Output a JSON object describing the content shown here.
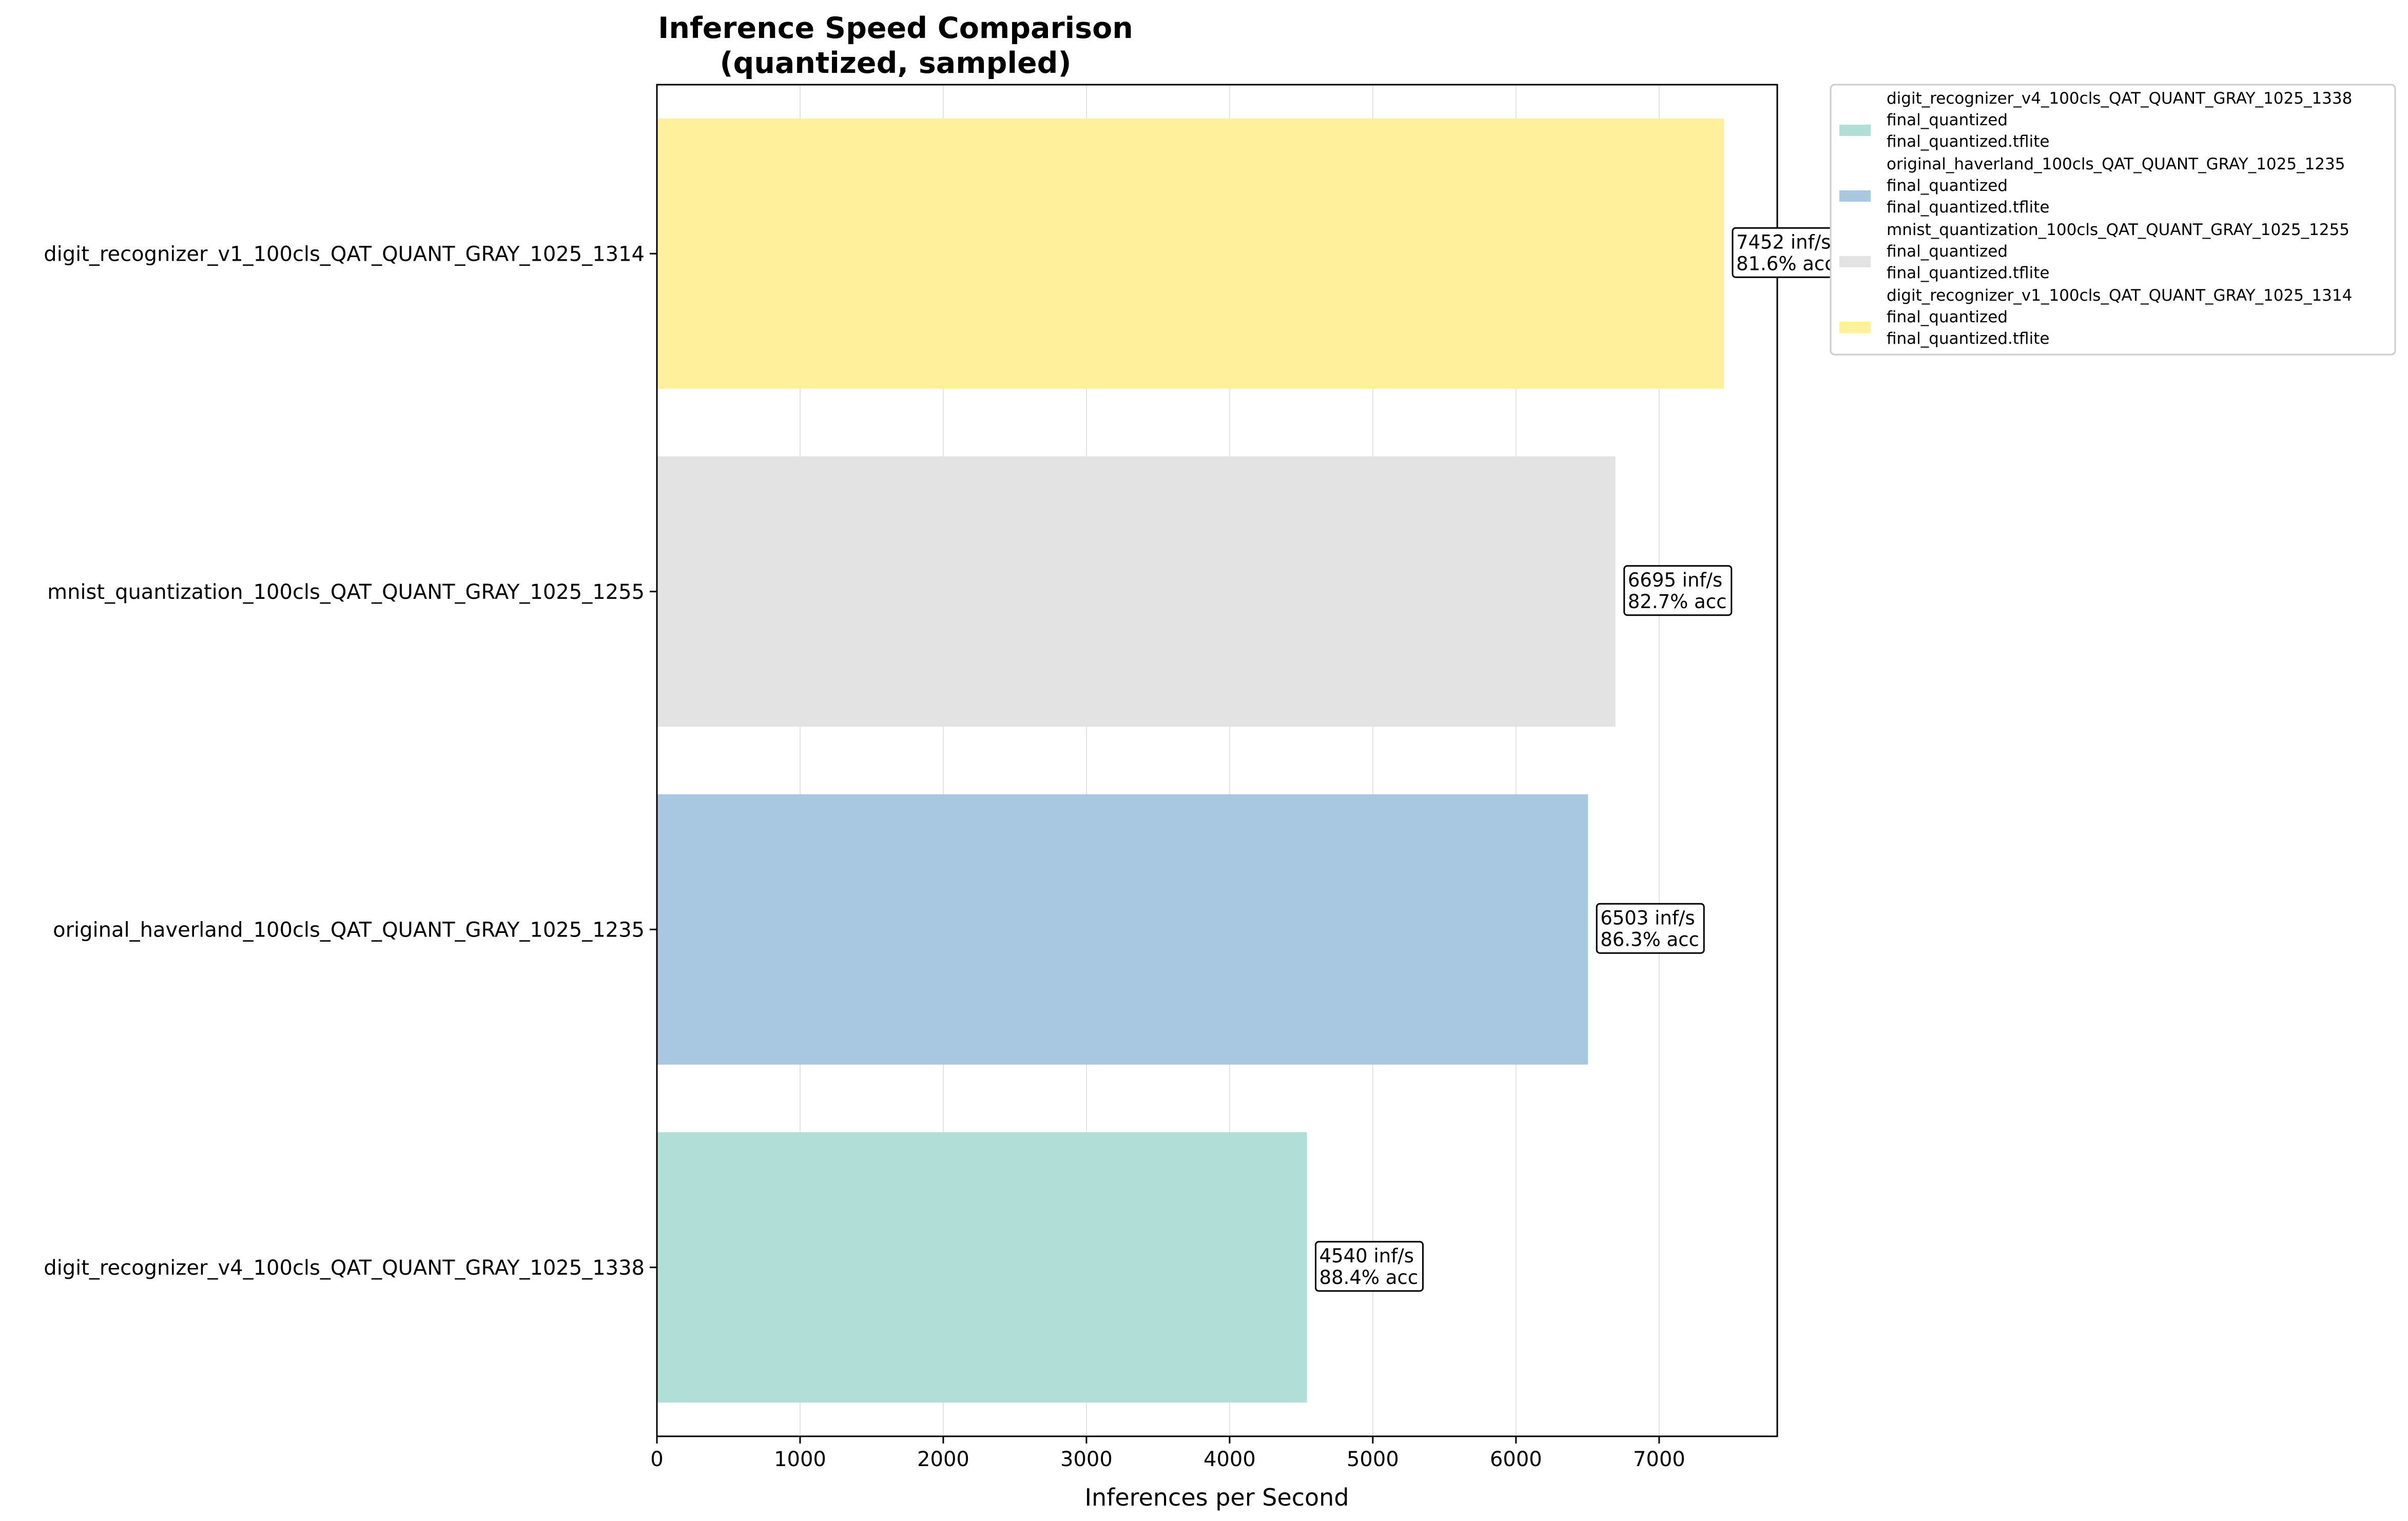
{
  "chart_data": {
    "type": "bar",
    "orientation": "horizontal",
    "title_lines": [
      "Inference Speed Comparison",
      "(quantized, sampled)"
    ],
    "xlabel": "Inferences per Second",
    "ylabel": "",
    "xlim": [
      0,
      7825
    ],
    "xticks": [
      0,
      1000,
      2000,
      3000,
      4000,
      5000,
      6000,
      7000
    ],
    "grid": "vertical",
    "legend_position": "outside-right-top",
    "categories": [
      "digit_recognizer_v4_100cls_QAT_QUANT_GRAY_1025_1338",
      "original_haverland_100cls_QAT_QUANT_GRAY_1025_1235",
      "mnist_quantization_100cls_QAT_QUANT_GRAY_1025_1255",
      "digit_recognizer_v1_100cls_QAT_QUANT_GRAY_1025_1314"
    ],
    "values": [
      4540,
      6503,
      6695,
      7452
    ],
    "data_labels": [
      [
        "4540 inf/s",
        "88.4% acc"
      ],
      [
        "6503 inf/s",
        "86.3% acc"
      ],
      [
        "6695 inf/s",
        "82.7% acc"
      ],
      [
        "7452 inf/s",
        "81.6% acc"
      ]
    ],
    "colors": [
      "#b1dfd8",
      "#a8c7e0",
      "#e3e3e3",
      "#fff09b"
    ],
    "legend": [
      [
        "digit_recognizer_v4_100cls_QAT_QUANT_GRAY_1025_1338",
        "final_quantized",
        "final_quantized.tflite"
      ],
      [
        "original_haverland_100cls_QAT_QUANT_GRAY_1025_1235",
        "final_quantized",
        "final_quantized.tflite"
      ],
      [
        "mnist_quantization_100cls_QAT_QUANT_GRAY_1025_1255",
        "final_quantized",
        "final_quantized.tflite"
      ],
      [
        "digit_recognizer_v1_100cls_QAT_QUANT_GRAY_1025_1314",
        "final_quantized",
        "final_quantized.tflite"
      ]
    ]
  }
}
